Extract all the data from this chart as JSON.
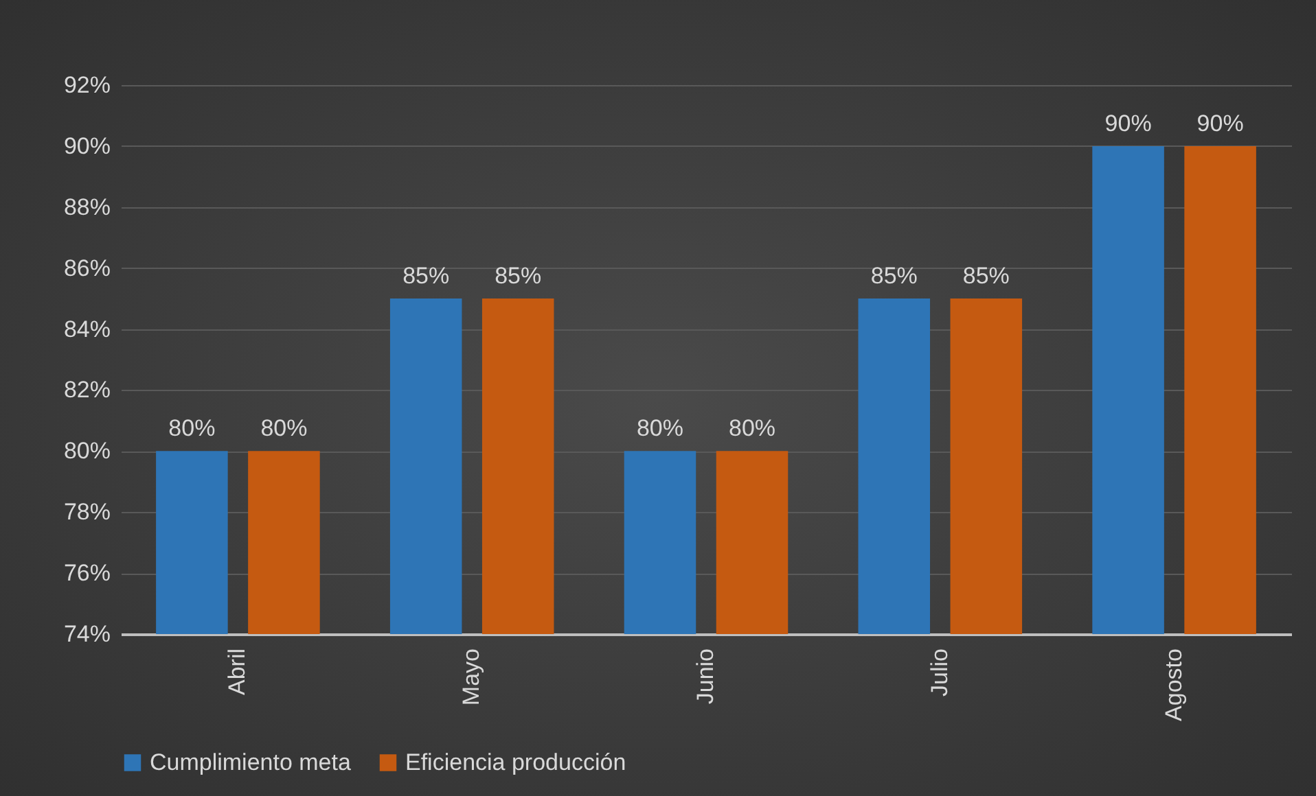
{
  "chart_data": {
    "type": "bar",
    "categories": [
      "Abril",
      "Mayo",
      "Junio",
      "Julio",
      "Agosto"
    ],
    "series": [
      {
        "name": "Cumplimiento meta",
        "color": "#2e75b6",
        "values": [
          80,
          85,
          80,
          85,
          90
        ],
        "value_labels": [
          "80%",
          "85%",
          "80%",
          "85%",
          "90%"
        ]
      },
      {
        "name": "Eficiencia producción",
        "color": "#c55a11",
        "values": [
          80,
          85,
          80,
          85,
          90
        ],
        "value_labels": [
          "80%",
          "85%",
          "80%",
          "85%",
          "90%"
        ]
      }
    ],
    "ylim": [
      74,
      92
    ],
    "yticks": [
      {
        "value": 74,
        "label": "74%"
      },
      {
        "value": 76,
        "label": "76%"
      },
      {
        "value": 78,
        "label": "78%"
      },
      {
        "value": 80,
        "label": "80%"
      },
      {
        "value": 82,
        "label": "82%"
      },
      {
        "value": 84,
        "label": "84%"
      },
      {
        "value": 86,
        "label": "86%"
      },
      {
        "value": 88,
        "label": "88%"
      },
      {
        "value": 90,
        "label": "90%"
      },
      {
        "value": 92,
        "label": "92%"
      }
    ],
    "grid": "y",
    "legend": "bottom"
  }
}
